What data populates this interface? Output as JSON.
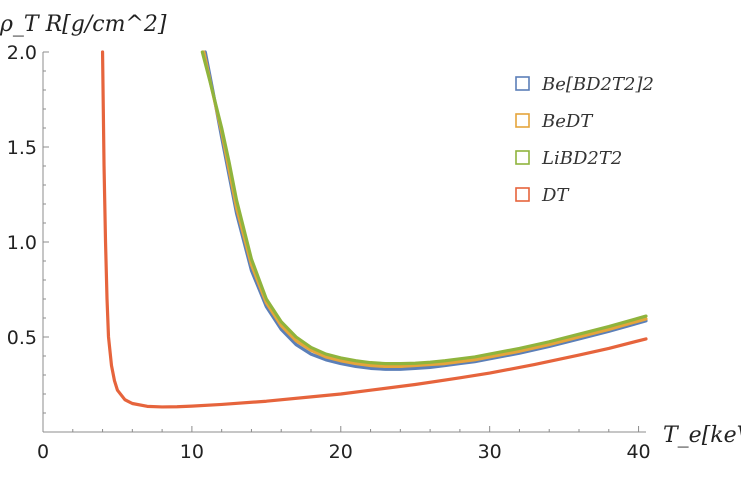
{
  "chart_data": {
    "type": "line",
    "title": "",
    "xlabel": "T_e[keV]",
    "ylabel": "ρ_T R[g/cm^2]",
    "xlim": [
      0,
      40.5
    ],
    "ylim": [
      0,
      2.0
    ],
    "x_major_ticks": [
      0,
      10,
      20,
      30,
      40
    ],
    "x_tick_labels": [
      "0",
      "10",
      "20",
      "30",
      "40"
    ],
    "y_major_ticks": [
      0.5,
      1.0,
      1.5,
      2.0
    ],
    "y_tick_labels": [
      "0.5",
      "1.0",
      "1.5",
      "2.0"
    ],
    "grid": false,
    "legend_position": "top-right",
    "series": [
      {
        "name": "Be[BD2T2]2",
        "color": "#5b7fb8",
        "points": [
          [
            10.9,
            2.0
          ],
          [
            11.4,
            1.8
          ],
          [
            12,
            1.55
          ],
          [
            12.5,
            1.35
          ],
          [
            13,
            1.15
          ],
          [
            14,
            0.85
          ],
          [
            15,
            0.66
          ],
          [
            16,
            0.54
          ],
          [
            17,
            0.46
          ],
          [
            18,
            0.41
          ],
          [
            19,
            0.38
          ],
          [
            20,
            0.36
          ],
          [
            21,
            0.345
          ],
          [
            22,
            0.335
          ],
          [
            23,
            0.33
          ],
          [
            24,
            0.33
          ],
          [
            25,
            0.335
          ],
          [
            26,
            0.34
          ],
          [
            27,
            0.35
          ],
          [
            28,
            0.36
          ],
          [
            29,
            0.37
          ],
          [
            30,
            0.385
          ],
          [
            32,
            0.415
          ],
          [
            34,
            0.45
          ],
          [
            36,
            0.49
          ],
          [
            38,
            0.53
          ],
          [
            40.5,
            0.585
          ]
        ]
      },
      {
        "name": "BeDT",
        "color": "#e5a53c",
        "points": [
          [
            10.8,
            2.0
          ],
          [
            11.3,
            1.82
          ],
          [
            12,
            1.58
          ],
          [
            12.5,
            1.38
          ],
          [
            13,
            1.18
          ],
          [
            14,
            0.88
          ],
          [
            15,
            0.68
          ],
          [
            16,
            0.56
          ],
          [
            17,
            0.48
          ],
          [
            18,
            0.43
          ],
          [
            19,
            0.395
          ],
          [
            20,
            0.375
          ],
          [
            21,
            0.36
          ],
          [
            22,
            0.35
          ],
          [
            23,
            0.345
          ],
          [
            24,
            0.345
          ],
          [
            25,
            0.35
          ],
          [
            26,
            0.355
          ],
          [
            27,
            0.36
          ],
          [
            28,
            0.37
          ],
          [
            29,
            0.38
          ],
          [
            30,
            0.395
          ],
          [
            32,
            0.425
          ],
          [
            34,
            0.46
          ],
          [
            36,
            0.5
          ],
          [
            38,
            0.54
          ],
          [
            40.5,
            0.595
          ]
        ]
      },
      {
        "name": "LiBD2T2",
        "color": "#8fb43d",
        "points": [
          [
            10.7,
            2.0
          ],
          [
            11.2,
            1.85
          ],
          [
            12,
            1.6
          ],
          [
            12.5,
            1.42
          ],
          [
            13,
            1.22
          ],
          [
            14,
            0.91
          ],
          [
            15,
            0.7
          ],
          [
            16,
            0.58
          ],
          [
            17,
            0.5
          ],
          [
            18,
            0.445
          ],
          [
            19,
            0.41
          ],
          [
            20,
            0.39
          ],
          [
            21,
            0.375
          ],
          [
            22,
            0.365
          ],
          [
            23,
            0.36
          ],
          [
            24,
            0.36
          ],
          [
            25,
            0.362
          ],
          [
            26,
            0.367
          ],
          [
            27,
            0.375
          ],
          [
            28,
            0.385
          ],
          [
            29,
            0.395
          ],
          [
            30,
            0.41
          ],
          [
            32,
            0.44
          ],
          [
            34,
            0.475
          ],
          [
            36,
            0.515
          ],
          [
            38,
            0.555
          ],
          [
            40.5,
            0.61
          ]
        ]
      },
      {
        "name": "DT",
        "color": "#e6643c",
        "points": [
          [
            4.0,
            2.0
          ],
          [
            4.05,
            1.7
          ],
          [
            4.1,
            1.4
          ],
          [
            4.2,
            1.0
          ],
          [
            4.3,
            0.7
          ],
          [
            4.4,
            0.5
          ],
          [
            4.6,
            0.35
          ],
          [
            4.8,
            0.27
          ],
          [
            5.0,
            0.22
          ],
          [
            5.5,
            0.17
          ],
          [
            6,
            0.15
          ],
          [
            7,
            0.135
          ],
          [
            8,
            0.132
          ],
          [
            9,
            0.133
          ],
          [
            10,
            0.136
          ],
          [
            12,
            0.145
          ],
          [
            15,
            0.162
          ],
          [
            18,
            0.185
          ],
          [
            20,
            0.2
          ],
          [
            22,
            0.22
          ],
          [
            25,
            0.25
          ],
          [
            28,
            0.285
          ],
          [
            30,
            0.31
          ],
          [
            33,
            0.355
          ],
          [
            36,
            0.405
          ],
          [
            38,
            0.44
          ],
          [
            40.5,
            0.49
          ]
        ]
      }
    ]
  }
}
